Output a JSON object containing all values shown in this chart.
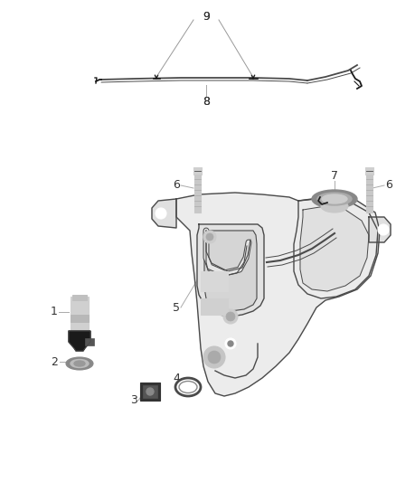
{
  "background_color": "#ffffff",
  "line_color": "#4a4a4a",
  "dark_color": "#1a1a1a",
  "label_color": "#333333",
  "fig_width": 4.38,
  "fig_height": 5.33,
  "dpi": 100
}
